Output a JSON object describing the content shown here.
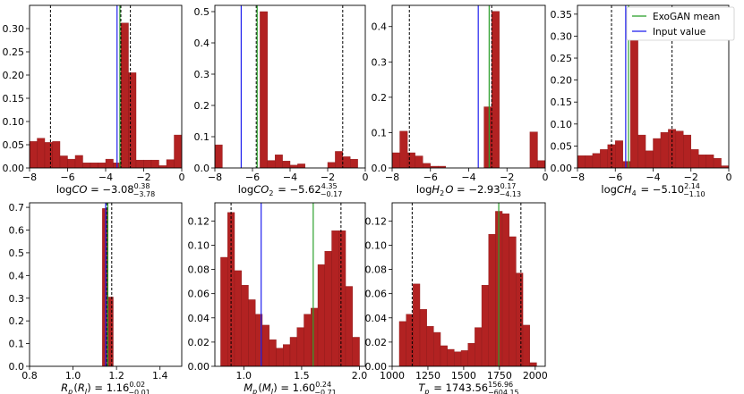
{
  "colors": {
    "bar_fill": "#b22222",
    "bar_edge": "#8b1a1a",
    "mean_line": "#2ca02c",
    "input_line": "#2222ee",
    "ci_line": "#000000"
  },
  "legend": {
    "mean_label": "ExoGAN mean",
    "input_label": "Input value"
  },
  "chart_data": [
    {
      "type": "bar",
      "id": "logCO",
      "xlabel_main": "log",
      "xlabel_var": "CO",
      "xlabel_val": " = −3.08",
      "xlabel_sup": "0.38",
      "xlabel_sub": "−3.78",
      "xlim": [
        -8,
        0
      ],
      "ylim": [
        0,
        0.35
      ],
      "xticks": [
        -8,
        -6,
        -4,
        -2,
        0
      ],
      "xtick_labels": [
        "−8",
        "−6",
        "−4",
        "−2",
        "0"
      ],
      "yticks": [
        0,
        0.05,
        0.1,
        0.15,
        0.2,
        0.25,
        0.3
      ],
      "ytick_labels": [
        "0.00",
        "0.05",
        "0.10",
        "0.15",
        "0.20",
        "0.25",
        "0.30"
      ],
      "bin_start": -8,
      "bin_width": 0.4,
      "values": [
        0.057,
        0.064,
        0.055,
        0.057,
        0.026,
        0.019,
        0.027,
        0.011,
        0.011,
        0.011,
        0.019,
        0.011,
        0.312,
        0.205,
        0.017,
        0.017,
        0.017,
        0.005,
        0.018,
        0.071
      ],
      "mean": -3.25,
      "input": -3.4,
      "ci": [
        -6.9,
        -2.7,
        -3.2
      ]
    },
    {
      "type": "bar",
      "id": "logCO2",
      "xlabel_main": "log",
      "xlabel_var": "CO",
      "xlabel_var_sub": "2",
      "xlabel_val": " = −5.62",
      "xlabel_sup": "4.35",
      "xlabel_sub": "−0.17",
      "xlim": [
        -8,
        0
      ],
      "ylim": [
        0,
        0.52
      ],
      "xticks": [
        -8,
        -6,
        -4,
        -2,
        0
      ],
      "xtick_labels": [
        "−8",
        "−6",
        "−4",
        "−2",
        "0"
      ],
      "yticks": [
        0,
        0.1,
        0.2,
        0.3,
        0.4,
        0.5
      ],
      "ytick_labels": [
        "0.0",
        "0.1",
        "0.2",
        "0.3",
        "0.4",
        "0.5"
      ],
      "bin_start": -8,
      "bin_width": 0.4,
      "values": [
        0.074,
        0,
        0,
        0,
        0,
        0,
        0.5,
        0.024,
        0.042,
        0.022,
        0.009,
        0.013,
        0,
        0,
        0,
        0.018,
        0.053,
        0.036,
        0.028,
        0
      ],
      "mean": -5.75,
      "input": -6.6,
      "ci": [
        -5.8,
        -1.2
      ]
    },
    {
      "type": "bar",
      "id": "logH2O",
      "xlabel_main": "log",
      "xlabel_var": "H",
      "xlabel_var_sub": "2",
      "xlabel_var2": "O",
      "xlabel_val": " = −2.93",
      "xlabel_sup": "0.17",
      "xlabel_sub": "−4.13",
      "xlim": [
        -8,
        0
      ],
      "ylim": [
        0,
        0.46
      ],
      "xticks": [
        -8,
        -6,
        -4,
        -2,
        0
      ],
      "xtick_labels": [
        "−8",
        "−6",
        "−4",
        "−2",
        "0"
      ],
      "yticks": [
        0,
        0.1,
        0.2,
        0.3,
        0.4
      ],
      "ytick_labels": [
        "0.0",
        "0.1",
        "0.2",
        "0.3",
        "0.4"
      ],
      "bin_start": -8,
      "bin_width": 0.4,
      "values": [
        0.043,
        0.104,
        0.043,
        0.034,
        0.013,
        0.005,
        0.005,
        0,
        0,
        0,
        0,
        0,
        0.173,
        0.443,
        0,
        0,
        0,
        0,
        0.102,
        0.021
      ],
      "mean": -2.93,
      "input": -3.5,
      "ci": [
        -7.1,
        -2.8
      ]
    },
    {
      "type": "bar",
      "id": "logCH4",
      "xlabel_main": "log",
      "xlabel_var": "CH",
      "xlabel_var_sub": "4",
      "xlabel_val": " = −5.10",
      "xlabel_sup": "2.14",
      "xlabel_sub": "−1.10",
      "xlim": [
        -8,
        0
      ],
      "ylim": [
        0,
        0.37
      ],
      "xticks": [
        -8,
        -6,
        -4,
        -2,
        0
      ],
      "xtick_labels": [
        "−8",
        "−6",
        "−4",
        "−2",
        "0"
      ],
      "yticks": [
        0,
        0.05,
        0.1,
        0.15,
        0.2,
        0.25,
        0.3,
        0.35
      ],
      "ytick_labels": [
        "0.00",
        "0.05",
        "0.10",
        "0.15",
        "0.20",
        "0.25",
        "0.30",
        "0.35"
      ],
      "bin_start": -8,
      "bin_width": 0.4,
      "values": [
        0.028,
        0.028,
        0.033,
        0.042,
        0.053,
        0.062,
        0.015,
        0.35,
        0.075,
        0.039,
        0.067,
        0.081,
        0.088,
        0.084,
        0.075,
        0.042,
        0.03,
        0.03,
        0.022,
        0.005
      ],
      "mean": -5.3,
      "input": -5.45,
      "ci": [
        -6.2,
        -3.0
      ]
    },
    {
      "type": "bar",
      "id": "Rp",
      "xlabel_main": "",
      "xlabel_var": "R",
      "xlabel_var_sub": "p",
      "xlabel_paren": "(R",
      "xlabel_paren_sub": "J",
      "xlabel_paren_close": ")",
      "xlabel_val": " = 1.16",
      "xlabel_sup": "0.02",
      "xlabel_sub": "−0.01",
      "xlim": [
        0.8,
        1.5
      ],
      "ylim": [
        0,
        0.72
      ],
      "xticks": [
        0.8,
        1.0,
        1.2,
        1.4
      ],
      "xtick_labels": [
        "0.8",
        "1.0",
        "1.2",
        "1.4"
      ],
      "yticks": [
        0,
        0.1,
        0.2,
        0.3,
        0.4,
        0.5,
        0.6,
        0.7
      ],
      "ytick_labels": [
        "0.0",
        "0.1",
        "0.2",
        "0.3",
        "0.4",
        "0.5",
        "0.6",
        "0.7"
      ],
      "bin_start": 1.135,
      "bin_width": 0.025,
      "values": [
        0.695,
        0.305
      ],
      "mean": 1.16,
      "input": 1.15,
      "ci": [
        1.155,
        1.178
      ]
    },
    {
      "type": "bar",
      "id": "Mp",
      "xlabel_main": "",
      "xlabel_var": "M",
      "xlabel_var_sub": "p",
      "xlabel_paren": "(M",
      "xlabel_paren_sub": "J",
      "xlabel_paren_close": ")",
      "xlabel_val": " = 1.60",
      "xlabel_sup": "0.24",
      "xlabel_sub": "−0.71",
      "xlim": [
        0.75,
        2.05
      ],
      "ylim": [
        0,
        0.135
      ],
      "xticks": [
        1.0,
        1.5,
        2.0
      ],
      "xtick_labels": [
        "1.0",
        "1.5",
        "2.0"
      ],
      "yticks": [
        0,
        0.02,
        0.04,
        0.06,
        0.08,
        0.1,
        0.12
      ],
      "ytick_labels": [
        "0.00",
        "0.02",
        "0.04",
        "0.06",
        "0.08",
        "0.10",
        "0.12"
      ],
      "bin_start": 0.8,
      "bin_width": 0.06,
      "values": [
        0.09,
        0.127,
        0.079,
        0.067,
        0.055,
        0.043,
        0.034,
        0.022,
        0.015,
        0.018,
        0.024,
        0.032,
        0.043,
        0.048,
        0.084,
        0.095,
        0.112,
        0.112,
        0.066,
        0.024
      ],
      "mean": 1.6,
      "input": 1.15,
      "ci": [
        0.89,
        1.84
      ]
    },
    {
      "type": "bar",
      "id": "Tp",
      "xlabel_main": "",
      "xlabel_var": "T",
      "xlabel_var_sub": "p",
      "xlabel_val": " = 1743.56",
      "xlabel_sup": "156.96",
      "xlabel_sub": "−604.15",
      "xlim": [
        1000,
        2070
      ],
      "ylim": [
        0,
        0.135
      ],
      "xticks": [
        1000,
        1250,
        1500,
        1750,
        2000
      ],
      "xtick_labels": [
        "1000",
        "1250",
        "1500",
        "1750",
        "2000"
      ],
      "yticks": [
        0,
        0.02,
        0.04,
        0.06,
        0.08,
        0.1,
        0.12
      ],
      "ytick_labels": [
        "0.00",
        "0.02",
        "0.04",
        "0.06",
        "0.08",
        "0.10",
        "0.12"
      ],
      "bin_start": 1050,
      "bin_width": 48,
      "values": [
        0.037,
        0.043,
        0.068,
        0.047,
        0.033,
        0.028,
        0.017,
        0.014,
        0.012,
        0.013,
        0.019,
        0.032,
        0.067,
        0.109,
        0.128,
        0.126,
        0.107,
        0.077,
        0.034,
        0.003
      ],
      "mean": 1745,
      "input": null,
      "ci": [
        1140,
        1900
      ]
    }
  ]
}
